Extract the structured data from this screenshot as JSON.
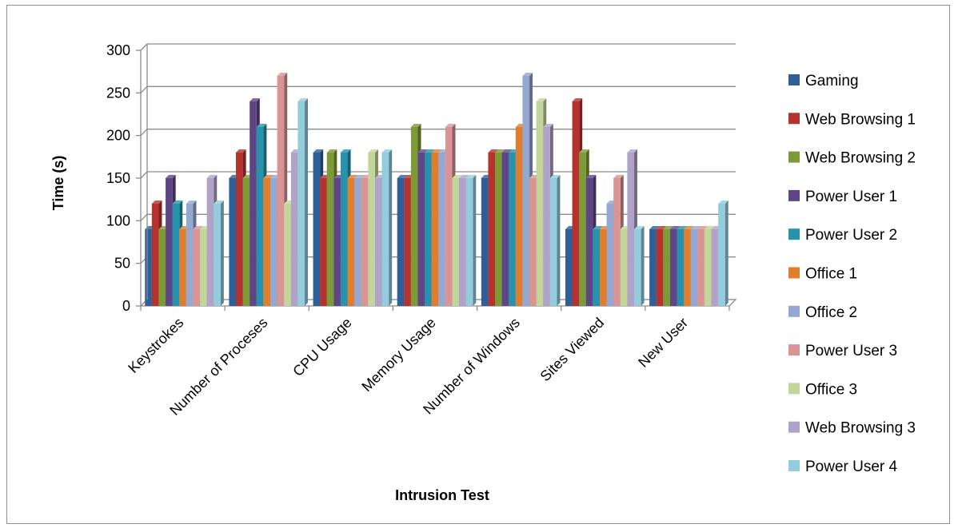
{
  "chart_data": {
    "type": "bar",
    "title": "",
    "xlabel": "Intrusion Test",
    "ylabel": "Time (s)",
    "ylim": [
      0,
      300
    ],
    "yticks": [
      0,
      50,
      100,
      150,
      200,
      250,
      300
    ],
    "grid": true,
    "legend_position": "right",
    "categories": [
      "Keystrokes",
      "Number of Proceses",
      "CPU Usage",
      "Memory Usage",
      "Number of Windows",
      "Sites Viewed",
      "New User"
    ],
    "series": [
      {
        "name": "Gaming",
        "color": "#2F5F98",
        "values": [
          90,
          150,
          180,
          150,
          150,
          90,
          90
        ]
      },
      {
        "name": "Web Browsing 1",
        "color": "#B5322E",
        "values": [
          120,
          180,
          150,
          150,
          180,
          240,
          90
        ]
      },
      {
        "name": "Web Browsing 2",
        "color": "#7C9A35",
        "values": [
          90,
          150,
          180,
          210,
          180,
          180,
          90
        ]
      },
      {
        "name": "Power User 1",
        "color": "#5E4586",
        "values": [
          150,
          240,
          150,
          180,
          180,
          150,
          90
        ]
      },
      {
        "name": "Power User 2",
        "color": "#2792AB",
        "values": [
          120,
          210,
          180,
          180,
          180,
          90,
          90
        ]
      },
      {
        "name": "Office 1",
        "color": "#E07E2D",
        "values": [
          90,
          150,
          150,
          180,
          210,
          90,
          90
        ]
      },
      {
        "name": "Office 2",
        "color": "#95A8D1",
        "values": [
          120,
          150,
          150,
          180,
          270,
          120,
          90
        ]
      },
      {
        "name": "Power User 3",
        "color": "#DA9493",
        "values": [
          90,
          270,
          150,
          210,
          150,
          150,
          90
        ]
      },
      {
        "name": "Office 3",
        "color": "#C2D69A",
        "values": [
          90,
          120,
          180,
          150,
          240,
          90,
          90
        ]
      },
      {
        "name": "Web Browsing 3",
        "color": "#B1A2C8",
        "values": [
          150,
          180,
          150,
          150,
          210,
          180,
          90
        ]
      },
      {
        "name": "Power User 4",
        "color": "#93CDDD",
        "values": [
          120,
          240,
          180,
          150,
          150,
          90,
          120
        ]
      }
    ]
  }
}
